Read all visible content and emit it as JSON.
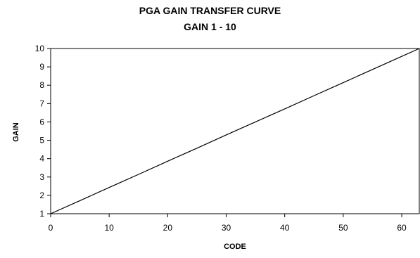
{
  "chart_data": {
    "type": "line",
    "title": "PGA GAIN TRANSFER CURVE",
    "subtitle": "GAIN 1 - 10",
    "xlabel": "CODE",
    "ylabel": "GAIN",
    "xlim": [
      0,
      63
    ],
    "ylim": [
      1,
      10
    ],
    "x_ticks": [
      0,
      10,
      20,
      30,
      40,
      50,
      60
    ],
    "y_ticks": [
      1,
      2,
      3,
      4,
      5,
      6,
      7,
      8,
      9,
      10
    ],
    "grid": false,
    "legend": "none",
    "line_color": "#000000",
    "series": [
      {
        "x": [
          0,
          5,
          10,
          15,
          20,
          25,
          30,
          35,
          40,
          45,
          50,
          55,
          60,
          63
        ],
        "values": [
          1.0,
          1.71,
          2.43,
          3.14,
          3.86,
          4.57,
          5.29,
          6.0,
          6.71,
          7.43,
          8.14,
          8.86,
          9.57,
          10.0
        ]
      }
    ]
  }
}
